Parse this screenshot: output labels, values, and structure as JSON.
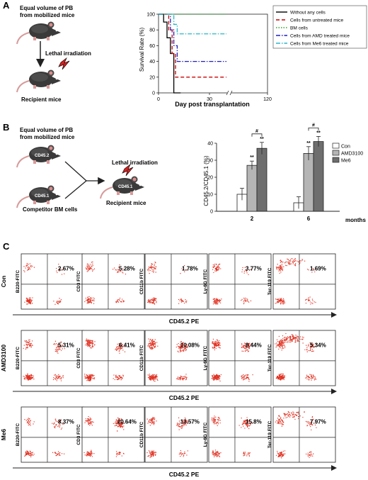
{
  "panel_a": {
    "letter": "A",
    "caption_top_1": "Equal volume of PB",
    "caption_top_2": "from mobilized mice",
    "irradiation": "Lethal irradiation",
    "recipient": "Recipient mice",
    "chart_data": {
      "type": "line",
      "subtype": "survival-step",
      "xlabel": "Day post transplantation",
      "ylabel": "Survival Rate (%)",
      "x_ticks": [
        0,
        30,
        120
      ],
      "x_axis_break": true,
      "y_ticks": [
        0,
        20,
        40,
        60,
        80,
        100
      ],
      "ylim": [
        0,
        100
      ],
      "legend_position": "top-right",
      "series": [
        {
          "name": "Without any cells",
          "color": "#000000",
          "dash": "solid",
          "points": [
            [
              0,
              100
            ],
            [
              3,
              100
            ],
            [
              3,
              90
            ],
            [
              5,
              90
            ],
            [
              5,
              70
            ],
            [
              7,
              70
            ],
            [
              7,
              50
            ],
            [
              9,
              50
            ],
            [
              9,
              0
            ],
            [
              13,
              0
            ]
          ]
        },
        {
          "name": "Cells from untreated mice",
          "color": "#cc0000",
          "dash": "dashed",
          "points": [
            [
              0,
              100
            ],
            [
              6,
              100
            ],
            [
              6,
              80
            ],
            [
              8,
              80
            ],
            [
              8,
              50
            ],
            [
              10,
              50
            ],
            [
              10,
              20
            ],
            [
              40,
              20
            ]
          ]
        },
        {
          "name": "BM cells",
          "color": "#2ca02c",
          "dash": "dotted",
          "points": [
            [
              0,
              100
            ],
            [
              40,
              100
            ]
          ]
        },
        {
          "name": "Cells from AMD treated mice",
          "color": "#1f1fbf",
          "dash": "dashdot",
          "points": [
            [
              0,
              100
            ],
            [
              7,
              100
            ],
            [
              7,
              80
            ],
            [
              9,
              80
            ],
            [
              9,
              60
            ],
            [
              11,
              60
            ],
            [
              11,
              40
            ],
            [
              40,
              40
            ]
          ]
        },
        {
          "name": "Cells from Me6 treated mice",
          "color": "#29b6c8",
          "dash": "dashdot",
          "points": [
            [
              0,
              100
            ],
            [
              9,
              100
            ],
            [
              9,
              87
            ],
            [
              11,
              87
            ],
            [
              11,
              75
            ],
            [
              40,
              75
            ]
          ]
        }
      ]
    }
  },
  "panel_b": {
    "letter": "B",
    "caption_top_1": "Equal volume of PB",
    "caption_top_2": "from mobilized mice",
    "donor_label": "CD45.2",
    "competitor_label": "CD45.1",
    "competitor_caption": "Competitor BM cells",
    "irradiation": "Lethal irradiation",
    "recipient_label": "CD45.1",
    "recipient": "Recipient  mice",
    "chart_data": {
      "type": "bar",
      "categories": [
        "2",
        "6"
      ],
      "xlabel": "months",
      "ylabel": "CD45.2/CD45.1 (%)",
      "ylim": [
        0,
        40
      ],
      "y_ticks": [
        0,
        10,
        20,
        30,
        40
      ],
      "legend_position": "top-right",
      "series": [
        {
          "name": "Con",
          "color": "#ffffff",
          "values": [
            10,
            5
          ],
          "errors": [
            3.5,
            3.5
          ]
        },
        {
          "name": "AMD3100",
          "color": "#b5b5b5",
          "values": [
            27,
            34
          ],
          "errors": [
            2.5,
            4
          ]
        },
        {
          "name": "Me6",
          "color": "#6e6e6e",
          "values": [
            37,
            41
          ],
          "errors": [
            3.5,
            3
          ]
        }
      ],
      "annotations": {
        "double_star": "**",
        "hash": "#"
      }
    }
  },
  "panel_c": {
    "letter": "C",
    "x_axis_label": "CD45.2 PE",
    "rows": [
      {
        "label": "Con",
        "plots": [
          {
            "ylabel": "B220-FITC",
            "pct": "2.67%"
          },
          {
            "ylabel": "CD3 FITC",
            "pct": "5.28%"
          },
          {
            "ylabel": "CD11b FITC",
            "pct": "1.78%"
          },
          {
            "ylabel": "Ly-6G FITC",
            "pct": "3.77%"
          },
          {
            "ylabel": "Ter-119 FITC",
            "pct": "1.69%"
          }
        ]
      },
      {
        "label": "AMD3100",
        "plots": [
          {
            "ylabel": "B220-FITC",
            "pct": "5.31%"
          },
          {
            "ylabel": "CD3 FITC",
            "pct": "6.41%"
          },
          {
            "ylabel": "CD11b FITC",
            "pct": "10.08%"
          },
          {
            "ylabel": "Ly-6G FITC",
            "pct": "8.44%"
          },
          {
            "ylabel": "Ter-119 FITC",
            "pct": "5.34%"
          }
        ]
      },
      {
        "label": "Me6",
        "plots": [
          {
            "ylabel": "B220-FITC",
            "pct": "8.37%"
          },
          {
            "ylabel": "CD3 FITC",
            "pct": "20.64%"
          },
          {
            "ylabel": "CD11b FITC",
            "pct": "13.57%"
          },
          {
            "ylabel": "Ly-6G FITC",
            "pct": "15.8%"
          },
          {
            "ylabel": "Ter-119 FITC",
            "pct": "7.97%"
          }
        ]
      }
    ],
    "dot_color": "#e03020"
  }
}
